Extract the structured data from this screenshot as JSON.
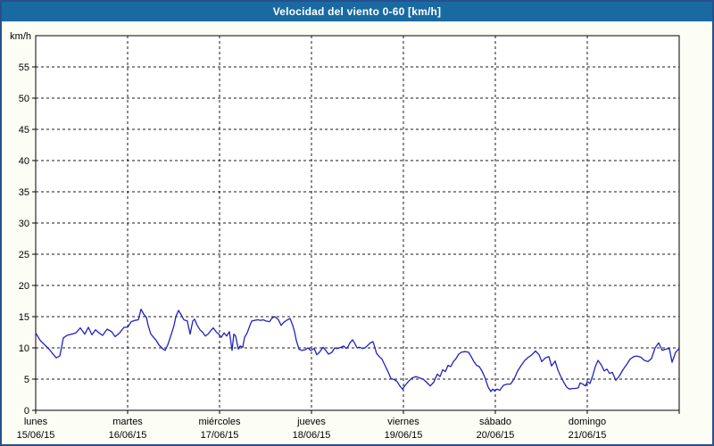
{
  "window": {
    "title": "Velocidad del viento 0-60 [km/h]"
  },
  "colors": {
    "titlebar_bg": "#1a6aa2",
    "titlebar_text": "#ffffff",
    "window_border": "#28508c",
    "page_bg": "#fcfef5",
    "plot_bg": "#ffffff",
    "axis": "#000000",
    "grid": "#1a1a1a",
    "label_text": "#000000",
    "line": "#2222bd"
  },
  "chart_data": {
    "type": "line",
    "title": "Velocidad del viento 0-60 [km/h]",
    "unit_label": "km/h",
    "ylabel": "km/h",
    "xlabel": "",
    "ylim": [
      0,
      60
    ],
    "ytick_step": 5,
    "ytick_labels": [
      "0",
      "5",
      "10",
      "15",
      "20",
      "25",
      "30",
      "35",
      "40",
      "45",
      "50",
      "55"
    ],
    "grid": "dashed",
    "legend_position": "none",
    "x_days": [
      {
        "name": "lunes",
        "date": "15/06/15"
      },
      {
        "name": "martes",
        "date": "16/06/15"
      },
      {
        "name": "miércoles",
        "date": "17/06/15"
      },
      {
        "name": "jueves",
        "date": "18/06/15"
      },
      {
        "name": "viernes",
        "date": "19/06/15"
      },
      {
        "name": "sábado",
        "date": "20/06/15"
      },
      {
        "name": "domingo",
        "date": "21/06/15"
      }
    ],
    "x_range_days": [
      0,
      7
    ],
    "series": [
      {
        "name": "Velocidad del viento",
        "color": "#2222bd",
        "points": [
          [
            0,
            12.4
          ],
          [
            0.049,
            11.2
          ],
          [
            0.097,
            10.5
          ],
          [
            0.146,
            9.8
          ],
          [
            0.194,
            8.9
          ],
          [
            0.223,
            8.4
          ],
          [
            0.262,
            8.7
          ],
          [
            0.301,
            11.6
          ],
          [
            0.34,
            12
          ],
          [
            0.388,
            12.2
          ],
          [
            0.437,
            12.4
          ],
          [
            0.485,
            13.2
          ],
          [
            0.534,
            12.2
          ],
          [
            0.573,
            13.3
          ],
          [
            0.612,
            12.1
          ],
          [
            0.65,
            12.9
          ],
          [
            0.689,
            12.4
          ],
          [
            0.728,
            12
          ],
          [
            0.777,
            13
          ],
          [
            0.825,
            12.6
          ],
          [
            0.864,
            11.8
          ],
          [
            0.913,
            12.4
          ],
          [
            0.961,
            13.3
          ],
          [
            1,
            13.3
          ],
          [
            1.039,
            14.2
          ],
          [
            1.078,
            14.4
          ],
          [
            1.117,
            14.5
          ],
          [
            1.146,
            16.2
          ],
          [
            1.175,
            15.4
          ],
          [
            1.204,
            14.9
          ],
          [
            1.223,
            13.6
          ],
          [
            1.252,
            12.2
          ],
          [
            1.282,
            11.7
          ],
          [
            1.311,
            11.2
          ],
          [
            1.34,
            10.5
          ],
          [
            1.379,
            9.9
          ],
          [
            1.408,
            9.6
          ],
          [
            1.437,
            10.5
          ],
          [
            1.476,
            12.2
          ],
          [
            1.505,
            13.6
          ],
          [
            1.524,
            15
          ],
          [
            1.553,
            16
          ],
          [
            1.583,
            15.3
          ],
          [
            1.612,
            14.5
          ],
          [
            1.65,
            14.3
          ],
          [
            1.68,
            12.2
          ],
          [
            1.709,
            14.3
          ],
          [
            1.728,
            14.6
          ],
          [
            1.757,
            13.6
          ],
          [
            1.786,
            12.9
          ],
          [
            1.816,
            12.5
          ],
          [
            1.845,
            11.9
          ],
          [
            1.874,
            12.2
          ],
          [
            1.913,
            12.9
          ],
          [
            1.932,
            13.2
          ],
          [
            1.961,
            12.6
          ],
          [
            1.99,
            12.2
          ],
          [
            2.019,
            11.7
          ],
          [
            2.049,
            12.4
          ],
          [
            2.078,
            11.9
          ],
          [
            2.107,
            12.6
          ],
          [
            2.136,
            9.6
          ],
          [
            2.155,
            12.2
          ],
          [
            2.175,
            11.9
          ],
          [
            2.204,
            9.8
          ],
          [
            2.223,
            10.3
          ],
          [
            2.252,
            10.1
          ],
          [
            2.272,
            11.7
          ],
          [
            2.301,
            12.4
          ],
          [
            2.33,
            13.6
          ],
          [
            2.35,
            14.3
          ],
          [
            2.379,
            14.4
          ],
          [
            2.417,
            14.5
          ],
          [
            2.447,
            14.4
          ],
          [
            2.476,
            14.5
          ],
          [
            2.505,
            14.3
          ],
          [
            2.544,
            14.2
          ],
          [
            2.573,
            14.8
          ],
          [
            2.602,
            15
          ],
          [
            2.641,
            14.5
          ],
          [
            2.67,
            13.6
          ],
          [
            2.699,
            14.1
          ],
          [
            2.738,
            14.5
          ],
          [
            2.767,
            14.7
          ],
          [
            2.796,
            13.6
          ],
          [
            2.816,
            12.6
          ],
          [
            2.835,
            11.2
          ],
          [
            2.864,
            9.8
          ],
          [
            2.893,
            9.6
          ],
          [
            2.932,
            9.7
          ],
          [
            2.961,
            10
          ],
          [
            2.99,
            9.6
          ],
          [
            3.029,
            9.9
          ],
          [
            3.058,
            8.9
          ],
          [
            3.087,
            9.3
          ],
          [
            3.126,
            10.1
          ],
          [
            3.155,
            9.6
          ],
          [
            3.184,
            9
          ],
          [
            3.223,
            9.3
          ],
          [
            3.252,
            10
          ],
          [
            3.282,
            9.9
          ],
          [
            3.32,
            10.1
          ],
          [
            3.35,
            10.3
          ],
          [
            3.379,
            9.9
          ],
          [
            3.398,
            10.2
          ],
          [
            3.417,
            10.8
          ],
          [
            3.447,
            11.3
          ],
          [
            3.476,
            10.6
          ],
          [
            3.495,
            10
          ],
          [
            3.524,
            10.1
          ],
          [
            3.553,
            9.9
          ],
          [
            3.583,
            10
          ],
          [
            3.612,
            10.4
          ],
          [
            3.641,
            10.8
          ],
          [
            3.67,
            11
          ],
          [
            3.709,
            9.1
          ],
          [
            3.738,
            8.6
          ],
          [
            3.767,
            8.2
          ],
          [
            3.806,
            7
          ],
          [
            3.835,
            6.1
          ],
          [
            3.864,
            5.1
          ],
          [
            3.903,
            4.9
          ],
          [
            3.932,
            4.6
          ],
          [
            3.961,
            3.9
          ],
          [
            3.99,
            3.4
          ],
          [
            4.019,
            4
          ],
          [
            4.058,
            4.7
          ],
          [
            4.097,
            5.2
          ],
          [
            4.136,
            5.4
          ],
          [
            4.175,
            5.2
          ],
          [
            4.214,
            5
          ],
          [
            4.252,
            4.5
          ],
          [
            4.291,
            3.9
          ],
          [
            4.33,
            4.5
          ],
          [
            4.369,
            5.8
          ],
          [
            4.398,
            5.4
          ],
          [
            4.427,
            6.5
          ],
          [
            4.456,
            6.2
          ],
          [
            4.485,
            7.2
          ],
          [
            4.515,
            7
          ],
          [
            4.544,
            7.8
          ],
          [
            4.573,
            8.3
          ],
          [
            4.602,
            9
          ],
          [
            4.631,
            9.3
          ],
          [
            4.67,
            9.4
          ],
          [
            4.709,
            9.3
          ],
          [
            4.738,
            8.6
          ],
          [
            4.767,
            7.8
          ],
          [
            4.796,
            7.2
          ],
          [
            4.825,
            7
          ],
          [
            4.854,
            6.3
          ],
          [
            4.883,
            5.4
          ],
          [
            4.922,
            3.7
          ],
          [
            4.951,
            3
          ],
          [
            4.971,
            3.4
          ],
          [
            4.99,
            3.1
          ],
          [
            5.019,
            3.4
          ],
          [
            5.049,
            3.2
          ],
          [
            5.087,
            4
          ],
          [
            5.126,
            4.2
          ],
          [
            5.165,
            4.2
          ],
          [
            5.204,
            5
          ],
          [
            5.243,
            6.3
          ],
          [
            5.282,
            7.2
          ],
          [
            5.32,
            8
          ],
          [
            5.359,
            8.5
          ],
          [
            5.398,
            8.9
          ],
          [
            5.437,
            9.5
          ],
          [
            5.476,
            8.9
          ],
          [
            5.505,
            7.8
          ],
          [
            5.544,
            8.4
          ],
          [
            5.583,
            8.6
          ],
          [
            5.612,
            7.1
          ],
          [
            5.65,
            7.9
          ],
          [
            5.68,
            6.5
          ],
          [
            5.709,
            5.5
          ],
          [
            5.748,
            4.4
          ],
          [
            5.777,
            3.7
          ],
          [
            5.806,
            3.4
          ],
          [
            5.845,
            3.5
          ],
          [
            5.874,
            3.5
          ],
          [
            5.903,
            3.6
          ],
          [
            5.922,
            4.4
          ],
          [
            5.951,
            4.2
          ],
          [
            5.981,
            3.9
          ],
          [
            6,
            4.6
          ],
          [
            6.029,
            4.3
          ],
          [
            6.058,
            5.5
          ],
          [
            6.087,
            7
          ],
          [
            6.117,
            8
          ],
          [
            6.155,
            7.2
          ],
          [
            6.184,
            6.3
          ],
          [
            6.214,
            6.6
          ],
          [
            6.243,
            5.9
          ],
          [
            6.272,
            6.1
          ],
          [
            6.311,
            4.8
          ],
          [
            6.35,
            5.5
          ],
          [
            6.388,
            6.5
          ],
          [
            6.427,
            7.3
          ],
          [
            6.466,
            8.2
          ],
          [
            6.505,
            8.6
          ],
          [
            6.544,
            8.7
          ],
          [
            6.583,
            8.5
          ],
          [
            6.621,
            8
          ],
          [
            6.66,
            7.8
          ],
          [
            6.699,
            8.3
          ],
          [
            6.738,
            10
          ],
          [
            6.777,
            10.8
          ],
          [
            6.816,
            9.6
          ],
          [
            6.854,
            9.8
          ],
          [
            6.893,
            9.9
          ],
          [
            6.922,
            7.7
          ],
          [
            6.961,
            9.3
          ],
          [
            7,
            9.9
          ]
        ]
      }
    ]
  }
}
